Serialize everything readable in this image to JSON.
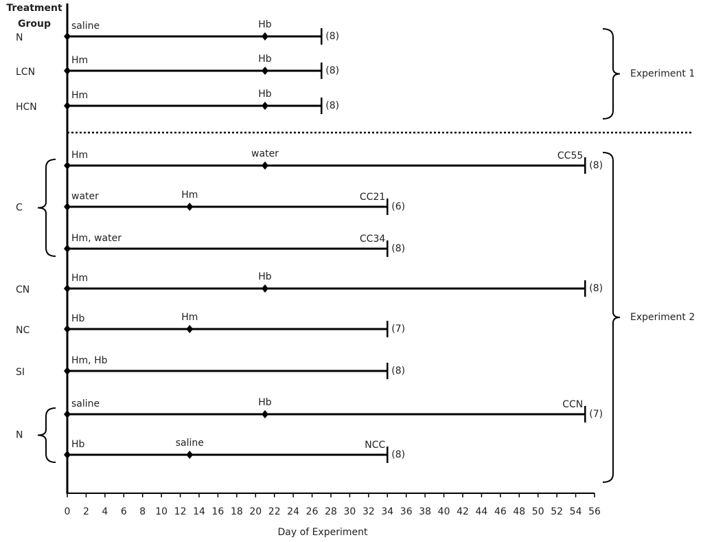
{
  "header": {
    "title_lines": [
      "Treatment",
      "Group"
    ]
  },
  "axis": {
    "label": "Day of Experiment",
    "lim": [
      0,
      56
    ],
    "ticks": [
      0,
      2,
      4,
      6,
      8,
      10,
      12,
      14,
      16,
      18,
      20,
      22,
      24,
      26,
      28,
      30,
      32,
      34,
      36,
      38,
      40,
      42,
      44,
      46,
      48,
      50,
      52,
      54,
      56
    ]
  },
  "experiments": [
    {
      "label": "Experiment 1",
      "groups": [
        {
          "label": "N",
          "rows": [
            {
              "start_label": "saline",
              "events": [
                {
                  "day": 21,
                  "label": "Hb"
                }
              ],
              "end": 27,
              "n": "(8)"
            }
          ]
        },
        {
          "label": "LCN",
          "rows": [
            {
              "start_label": "Hm",
              "events": [
                {
                  "day": 21,
                  "label": "Hb"
                }
              ],
              "end": 27,
              "n": "(8)"
            }
          ]
        },
        {
          "label": "HCN",
          "rows": [
            {
              "start_label": "Hm",
              "events": [
                {
                  "day": 21,
                  "label": "Hb"
                }
              ],
              "end": 27,
              "n": "(8)"
            }
          ]
        }
      ]
    },
    {
      "label": "Experiment 2",
      "groups": [
        {
          "label": "C",
          "rows": [
            {
              "start_label": "Hm",
              "events": [
                {
                  "day": 21,
                  "label": "water"
                }
              ],
              "end": 55,
              "end_label": "CC55",
              "n": "(8)"
            },
            {
              "start_label": "water",
              "events": [
                {
                  "day": 13,
                  "label": "Hm"
                }
              ],
              "end": 34,
              "end_label": "CC21",
              "n": "(6)"
            },
            {
              "start_label": "Hm, water",
              "events": [],
              "end": 34,
              "end_label": "CC34",
              "n": "(8)"
            }
          ]
        },
        {
          "label": "CN",
          "rows": [
            {
              "start_label": "Hm",
              "events": [
                {
                  "day": 21,
                  "label": "Hb"
                }
              ],
              "end": 55,
              "n": "(8)"
            }
          ]
        },
        {
          "label": "NC",
          "rows": [
            {
              "start_label": "Hb",
              "events": [
                {
                  "day": 13,
                  "label": "Hm"
                }
              ],
              "end": 34,
              "n": "(7)"
            }
          ]
        },
        {
          "label": "SI",
          "rows": [
            {
              "start_label": "Hm, Hb",
              "events": [],
              "end": 34,
              "n": "(8)"
            }
          ]
        },
        {
          "label": "N",
          "rows": [
            {
              "start_label": "saline",
              "events": [
                {
                  "day": 21,
                  "label": "Hb"
                }
              ],
              "end": 55,
              "end_label": "CCN",
              "n": "(7)"
            },
            {
              "start_label": "Hb",
              "events": [
                {
                  "day": 13,
                  "label": "saline"
                }
              ],
              "end": 34,
              "end_label": "NCC",
              "n": "(8)"
            }
          ]
        }
      ]
    }
  ]
}
